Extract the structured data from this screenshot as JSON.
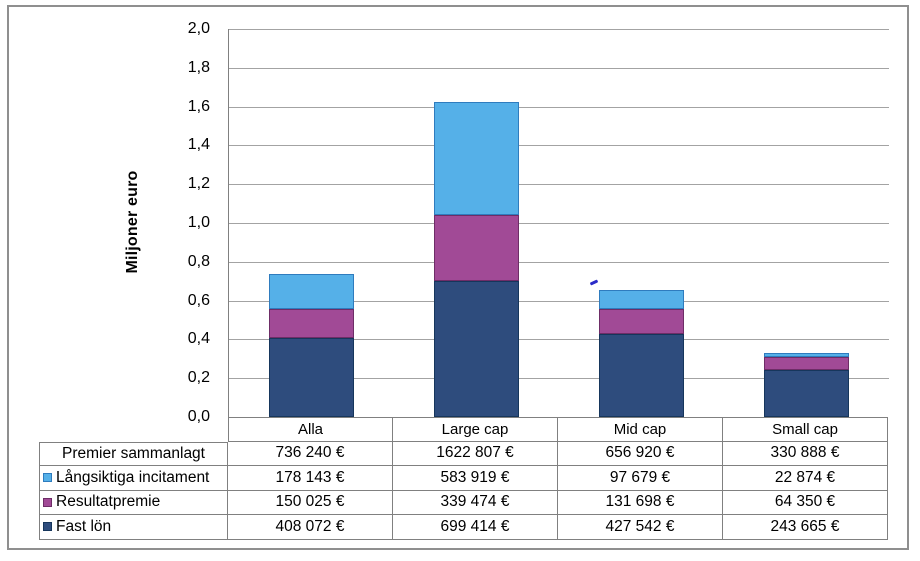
{
  "window": {
    "background": "#ffffff",
    "frame_border_color": "#8f8f8f"
  },
  "chart_data": {
    "type": "bar",
    "stacked": true,
    "title": "",
    "xlabel": "",
    "ylabel": "Miljoner euro",
    "ylim": [
      0,
      2
    ],
    "ytick_step": 0.2,
    "ytick_labels": [
      "0,0",
      "0,2",
      "0,4",
      "0,6",
      "0,8",
      "1,0",
      "1,2",
      "1,4",
      "1,6",
      "1,8",
      "2,0"
    ],
    "grid": true,
    "gridline_color": "#a3a3a3",
    "axis_line_color": "#808080",
    "legend_position": "attached data table, left column",
    "categories": [
      "Alla",
      "Large cap",
      "Mid cap",
      "Small cap"
    ],
    "category_slugs": [
      "alla",
      "large-cap",
      "mid-cap",
      "small-cap"
    ],
    "series": [
      {
        "name": "Fast lön",
        "slug": "fast-lon",
        "color": "#2e4c7d",
        "border_color": "#16365c",
        "values_eur": [
          408072,
          699414,
          427542,
          243665
        ]
      },
      {
        "name": "Resultatpremie",
        "slug": "resultatpremie",
        "color": "#a14a96",
        "border_color": "#6e2d67",
        "values_eur": [
          150025,
          339474,
          131698,
          64350
        ]
      },
      {
        "name": "Långsiktiga incitament",
        "slug": "langsiktiga-incitament",
        "color": "#55b0e8",
        "border_color": "#2f7cbe",
        "values_eur": [
          178143,
          583919,
          97679,
          22874
        ]
      }
    ],
    "totals": {
      "name": "Premier sammanlagt",
      "values_eur": [
        736240,
        1622807,
        656920,
        330888
      ]
    }
  },
  "data_table": {
    "rows": [
      {
        "label": "Premier sammanlagt",
        "marker_color": null,
        "marker_border": null,
        "values": [
          "736 240 €",
          "1622 807 €",
          "656 920 €",
          "330 888 €"
        ]
      },
      {
        "label": "Långsiktiga incitament",
        "marker_color": "#55b0e8",
        "marker_border": "#2f7cbe",
        "values": [
          "178 143 €",
          "583 919 €",
          "97 679 €",
          "22 874 €"
        ]
      },
      {
        "label": "Resultatpremie",
        "marker_color": "#a14a96",
        "marker_border": "#6e2d67",
        "values": [
          "150 025 €",
          "339 474 €",
          "131 698 €",
          "64 350 €"
        ]
      },
      {
        "label": "Fast lön",
        "marker_color": "#2e4c7d",
        "marker_border": "#16365c",
        "values": [
          "408 072 €",
          "699 414 €",
          "427 542 €",
          "243 665 €"
        ]
      }
    ]
  },
  "annotations": {
    "stray_ink_mark_color": "#2b2bc8"
  }
}
